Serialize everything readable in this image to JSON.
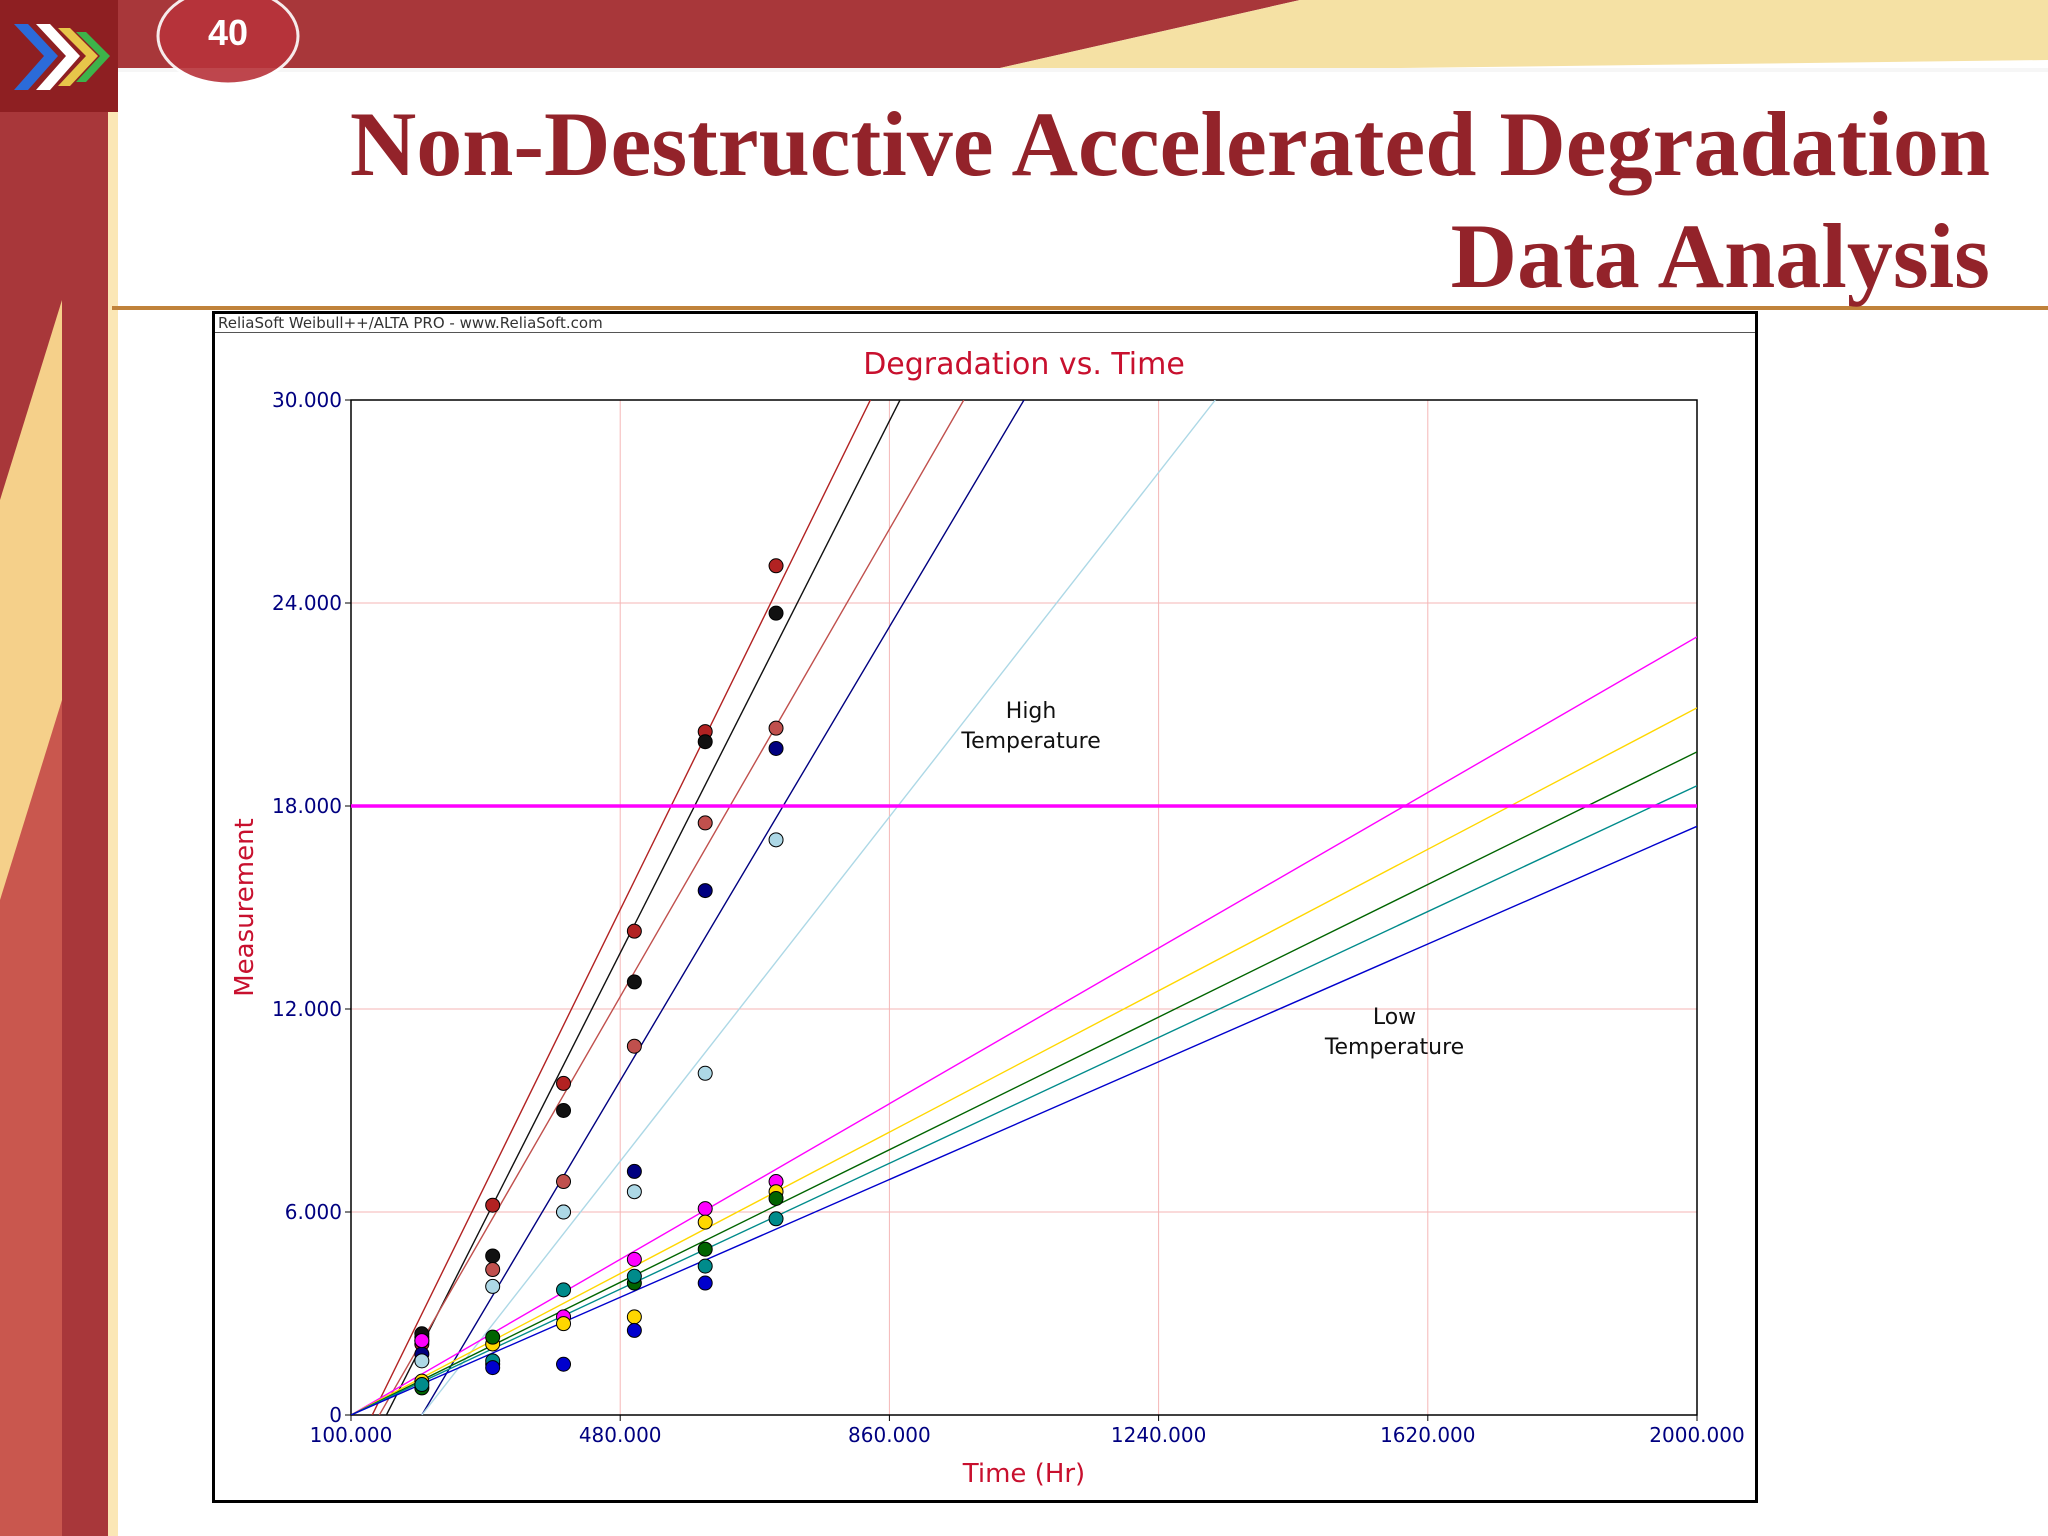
{
  "slide": {
    "number": "40",
    "title_line1": "Non-Destructive Accelerated Degradation",
    "title_line2": "Data Analysis",
    "colors": {
      "title": "#93232a",
      "theme": "#a8373a"
    }
  },
  "chart_data": {
    "type": "scatter",
    "watermark": "ReliaSoft Weibull++/ALTA PRO - www.ReliaSoft.com",
    "title": "Degradation vs. Time",
    "xlabel": "Time (Hr)",
    "ylabel": "Measurement",
    "xlim": [
      100,
      2000
    ],
    "ylim": [
      0,
      30
    ],
    "x_ticks": [
      "100.000",
      "480.000",
      "860.000",
      "1240.000",
      "1620.000",
      "2000.000"
    ],
    "y_ticks": [
      "0",
      "6.000",
      "12.000",
      "18.000",
      "24.000",
      "30.000"
    ],
    "x_tick_values": [
      100,
      480,
      860,
      1240,
      1620,
      2000
    ],
    "y_tick_values": [
      0,
      6,
      12,
      18,
      24,
      30
    ],
    "grid": true,
    "threshold": {
      "y": 18,
      "color": "#ff00ff"
    },
    "annotations": [
      {
        "lines": [
          "High",
          "Temperature"
        ],
        "x": 1060,
        "y": 20.6
      },
      {
        "lines": [
          "Low",
          "Temperature"
        ],
        "x": 1573,
        "y": 11.55
      }
    ],
    "series": [
      {
        "color": "#b22222",
        "line": [
          [
            130,
            0
          ],
          [
            880,
            32
          ]
        ],
        "points": [
          [
            200,
            2.3
          ],
          [
            200,
            2.1
          ],
          [
            300,
            6.2
          ],
          [
            400,
            9.8
          ],
          [
            500,
            14.3
          ],
          [
            600,
            20.2
          ],
          [
            700,
            25.1
          ]
        ]
      },
      {
        "color": "#111111",
        "line": [
          [
            150,
            0
          ],
          [
            875,
            30
          ]
        ],
        "points": [
          [
            200,
            2.4
          ],
          [
            300,
            4.7
          ],
          [
            400,
            9.0
          ],
          [
            500,
            12.8
          ],
          [
            600,
            19.9
          ],
          [
            700,
            23.7
          ]
        ]
      },
      {
        "color": "#c0504d",
        "line": [
          [
            140,
            0
          ],
          [
            965,
            30
          ]
        ],
        "points": [
          [
            200,
            2.2
          ],
          [
            300,
            4.3
          ],
          [
            400,
            6.9
          ],
          [
            500,
            10.9
          ],
          [
            600,
            17.5
          ],
          [
            700,
            20.3
          ]
        ]
      },
      {
        "color": "#000080",
        "line": [
          [
            200,
            0
          ],
          [
            1050,
            30
          ]
        ],
        "points": [
          [
            200,
            1.8
          ],
          [
            300,
            1.5
          ],
          [
            400,
            6.0
          ],
          [
            500,
            7.2
          ],
          [
            600,
            15.5
          ],
          [
            700,
            19.7
          ]
        ]
      },
      {
        "color": "#add8e6",
        "line": [
          [
            200,
            0
          ],
          [
            1320,
            30
          ]
        ],
        "points": [
          [
            200,
            1.6
          ],
          [
            300,
            3.8
          ],
          [
            400,
            6.0
          ],
          [
            500,
            6.6
          ],
          [
            600,
            10.1
          ],
          [
            700,
            17.0
          ]
        ]
      },
      {
        "color": "#ff00ff",
        "line": [
          [
            100,
            0
          ],
          [
            2000,
            23.0
          ]
        ],
        "points": [
          [
            200,
            2.2
          ],
          [
            400,
            2.9
          ],
          [
            500,
            4.6
          ],
          [
            600,
            6.1
          ],
          [
            700,
            6.9
          ]
        ]
      },
      {
        "color": "#ffd700",
        "line": [
          [
            100,
            0
          ],
          [
            2000,
            20.9
          ]
        ],
        "points": [
          [
            200,
            1.0
          ],
          [
            300,
            2.1
          ],
          [
            400,
            2.7
          ],
          [
            500,
            2.9
          ],
          [
            600,
            5.7
          ],
          [
            700,
            6.6
          ]
        ]
      },
      {
        "color": "#006400",
        "line": [
          [
            100,
            0
          ],
          [
            2000,
            19.6
          ]
        ],
        "points": [
          [
            200,
            0.8
          ],
          [
            300,
            2.3
          ],
          [
            500,
            3.9
          ],
          [
            600,
            4.9
          ],
          [
            700,
            6.4
          ]
        ]
      },
      {
        "color": "#008b8b",
        "line": [
          [
            100,
            0
          ],
          [
            2000,
            18.6
          ]
        ],
        "points": [
          [
            200,
            0.9
          ],
          [
            300,
            1.6
          ],
          [
            400,
            3.7
          ],
          [
            500,
            4.1
          ],
          [
            600,
            4.4
          ],
          [
            700,
            5.8
          ]
        ]
      },
      {
        "color": "#0000cd",
        "line": [
          [
            100,
            0
          ],
          [
            2000,
            17.4
          ]
        ],
        "points": [
          [
            300,
            1.4
          ],
          [
            400,
            1.5
          ],
          [
            500,
            2.5
          ],
          [
            600,
            3.9
          ]
        ]
      }
    ]
  }
}
